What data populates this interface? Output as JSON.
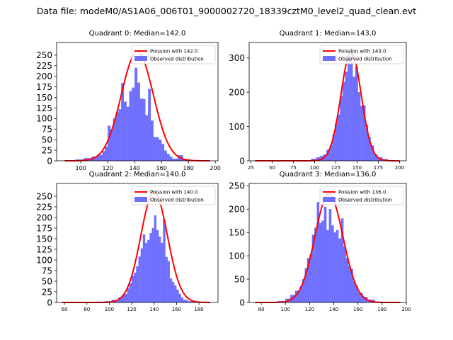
{
  "figure": {
    "suptitle": "Data file: modeM0/AS1A06_006T01_9000002720_18339cztM0_level2_quad_clean.evt"
  },
  "colors": {
    "histogram": "#7070ff",
    "poisson": "#ff0000",
    "axis": "#000000"
  },
  "chart_data": [
    {
      "type": "bar",
      "title": "Quadrant 0: Median=142.0",
      "legend": [
        "Poission with 142.0",
        "Observed distribution"
      ],
      "legend_position": "top-right",
      "xlim": [
        82,
        202
      ],
      "ylim": [
        0,
        280
      ],
      "xticks": [
        100,
        120,
        140,
        160,
        180,
        200
      ],
      "yticks": [
        0,
        25,
        50,
        75,
        100,
        125,
        150,
        175,
        200,
        225,
        250
      ],
      "bins": [
        [
          96,
          102,
          3
        ],
        [
          102,
          108,
          6
        ],
        [
          108,
          112,
          10
        ],
        [
          112,
          116,
          14
        ],
        [
          116,
          118,
          23
        ],
        [
          118,
          120,
          34
        ],
        [
          120,
          122,
          83
        ],
        [
          122,
          124,
          74
        ],
        [
          124,
          126,
          100
        ],
        [
          126,
          128,
          115
        ],
        [
          128,
          130,
          122
        ],
        [
          130,
          132,
          184
        ],
        [
          132,
          134,
          140
        ],
        [
          134,
          136,
          128
        ],
        [
          136,
          138,
          165
        ],
        [
          138,
          140,
          173
        ],
        [
          140,
          142,
          220
        ],
        [
          142,
          144,
          185
        ],
        [
          144,
          146,
          147
        ],
        [
          146,
          148,
          146
        ],
        [
          148,
          150,
          108
        ],
        [
          150,
          152,
          170
        ],
        [
          152,
          154,
          95
        ],
        [
          154,
          156,
          56
        ],
        [
          156,
          158,
          56
        ],
        [
          158,
          160,
          50
        ],
        [
          160,
          162,
          40
        ],
        [
          162,
          164,
          24
        ],
        [
          164,
          166,
          16
        ],
        [
          166,
          168,
          10
        ],
        [
          168,
          172,
          5
        ],
        [
          172,
          176,
          13
        ],
        [
          176,
          182,
          3
        ]
      ],
      "poisson": {
        "mean": 142.0,
        "peak": 258,
        "range": [
          88,
          196
        ]
      }
    },
    {
      "type": "bar",
      "title": "Quadrant 1: Median=143.0",
      "legend": [
        "Poission with 143.0",
        "Observed distribution"
      ],
      "legend_position": "top-right",
      "xlim": [
        23,
        208
      ],
      "ylim": [
        0,
        345
      ],
      "xticks": [
        25,
        50,
        75,
        100,
        125,
        150,
        175,
        200
      ],
      "yticks": [
        0,
        100,
        200,
        300
      ],
      "bins": [
        [
          96,
          102,
          6
        ],
        [
          102,
          106,
          10
        ],
        [
          106,
          110,
          14
        ],
        [
          110,
          114,
          18
        ],
        [
          114,
          118,
          32
        ],
        [
          118,
          121,
          45
        ],
        [
          121,
          124,
          76
        ],
        [
          124,
          127,
          110
        ],
        [
          127,
          130,
          135
        ],
        [
          130,
          133,
          190
        ],
        [
          133,
          136,
          230
        ],
        [
          136,
          139,
          260
        ],
        [
          139,
          142,
          305
        ],
        [
          142,
          145,
          328
        ],
        [
          145,
          148,
          245
        ],
        [
          148,
          151,
          275
        ],
        [
          151,
          154,
          200
        ],
        [
          154,
          157,
          160
        ],
        [
          157,
          160,
          162
        ],
        [
          160,
          163,
          105
        ],
        [
          163,
          166,
          70
        ],
        [
          166,
          170,
          45
        ],
        [
          170,
          174,
          18
        ],
        [
          174,
          180,
          10
        ],
        [
          180,
          186,
          5
        ]
      ],
      "poisson": {
        "mean": 143.0,
        "peak": 318,
        "range": [
          30,
          200
        ]
      }
    },
    {
      "type": "bar",
      "title": "Quadrant 2: Median=140.0",
      "legend": [
        "Poission with 140.0",
        "Observed distribution"
      ],
      "legend_position": "top-right",
      "xlim": [
        53,
        197
      ],
      "ylim": [
        0,
        280
      ],
      "xticks": [
        60,
        80,
        100,
        120,
        140,
        160,
        180
      ],
      "yticks": [
        0,
        25,
        50,
        75,
        100,
        125,
        150,
        175,
        200,
        225,
        250
      ],
      "bins": [
        [
          96,
          102,
          3
        ],
        [
          102,
          108,
          6
        ],
        [
          108,
          112,
          12
        ],
        [
          112,
          116,
          20
        ],
        [
          116,
          118,
          33
        ],
        [
          118,
          120,
          45
        ],
        [
          120,
          122,
          63
        ],
        [
          122,
          124,
          70
        ],
        [
          124,
          126,
          85
        ],
        [
          126,
          128,
          108
        ],
        [
          128,
          130,
          127
        ],
        [
          130,
          132,
          160
        ],
        [
          132,
          134,
          140
        ],
        [
          134,
          136,
          147
        ],
        [
          136,
          138,
          163
        ],
        [
          138,
          140,
          175
        ],
        [
          140,
          142,
          205
        ],
        [
          142,
          144,
          170
        ],
        [
          144,
          146,
          155
        ],
        [
          146,
          148,
          140
        ],
        [
          148,
          150,
          195
        ],
        [
          150,
          152,
          107
        ],
        [
          152,
          154,
          97
        ],
        [
          154,
          156,
          56
        ],
        [
          156,
          158,
          48
        ],
        [
          158,
          160,
          40
        ],
        [
          160,
          162,
          30
        ],
        [
          162,
          164,
          20
        ],
        [
          164,
          166,
          12
        ],
        [
          166,
          170,
          6
        ],
        [
          170,
          176,
          3
        ]
      ],
      "poisson": {
        "mean": 140.0,
        "peak": 260,
        "range": [
          58,
          190
        ]
      }
    },
    {
      "type": "bar",
      "title": "Quadrant 3: Median=136.0",
      "legend": [
        "Poission with 136.0",
        "Observed distribution"
      ],
      "legend_position": "top-right",
      "xlim": [
        70,
        200
      ],
      "ylim": [
        0,
        255
      ],
      "xticks": [
        80,
        100,
        120,
        140,
        160,
        180,
        200
      ],
      "yticks": [
        0,
        50,
        100,
        150,
        200,
        250
      ],
      "bins": [
        [
          94,
          100,
          3
        ],
        [
          100,
          104,
          8
        ],
        [
          104,
          108,
          16
        ],
        [
          108,
          112,
          25
        ],
        [
          112,
          114,
          35
        ],
        [
          114,
          116,
          50
        ],
        [
          116,
          118,
          73
        ],
        [
          118,
          120,
          95
        ],
        [
          120,
          122,
          103
        ],
        [
          122,
          124,
          145
        ],
        [
          124,
          126,
          160
        ],
        [
          126,
          128,
          215
        ],
        [
          128,
          130,
          170
        ],
        [
          130,
          132,
          175
        ],
        [
          132,
          134,
          205
        ],
        [
          134,
          136,
          155
        ],
        [
          136,
          138,
          200
        ],
        [
          138,
          140,
          165
        ],
        [
          140,
          142,
          150
        ],
        [
          142,
          144,
          155
        ],
        [
          144,
          146,
          137
        ],
        [
          146,
          148,
          180
        ],
        [
          148,
          150,
          120
        ],
        [
          150,
          152,
          95
        ],
        [
          152,
          154,
          78
        ],
        [
          154,
          156,
          72
        ],
        [
          156,
          158,
          45
        ],
        [
          158,
          160,
          35
        ],
        [
          160,
          162,
          22
        ],
        [
          162,
          164,
          20
        ],
        [
          164,
          168,
          12
        ],
        [
          168,
          174,
          6
        ]
      ],
      "poisson": {
        "mean": 136.0,
        "peak": 232,
        "range": [
          75,
          195
        ]
      }
    }
  ]
}
